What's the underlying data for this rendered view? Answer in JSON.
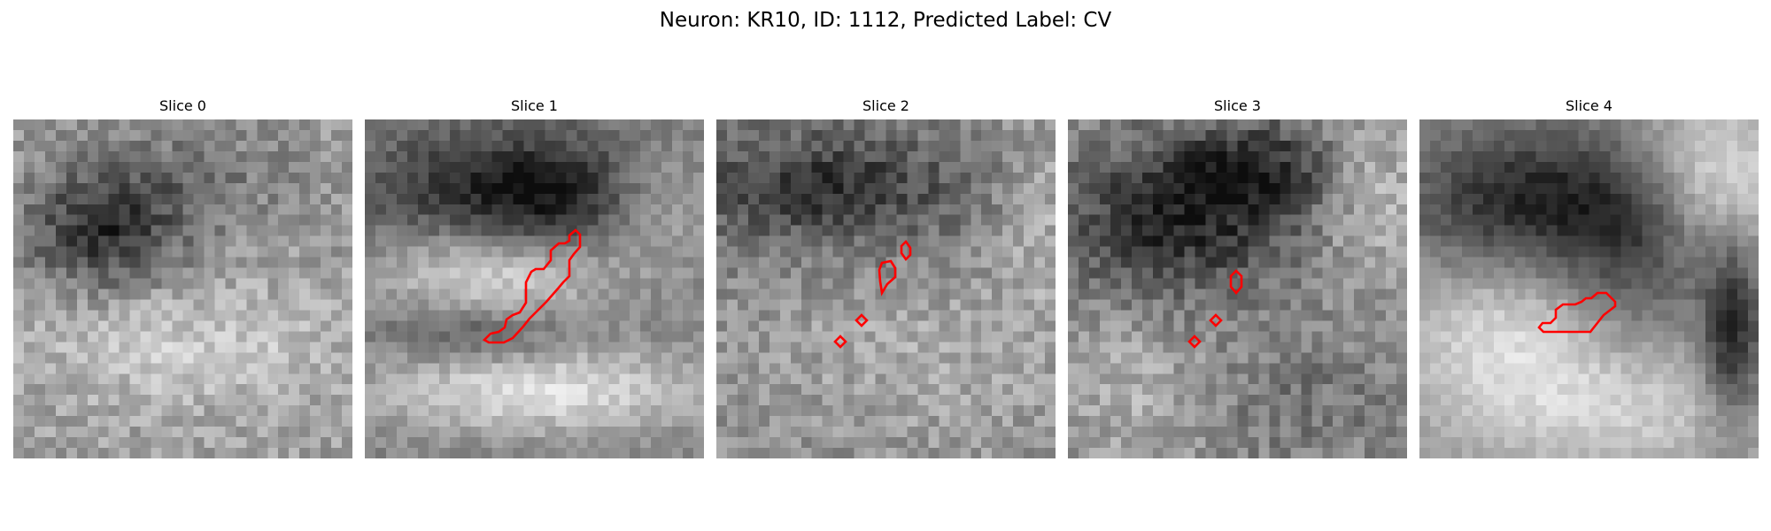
{
  "figure": {
    "title": "Neuron: KR10, ID: 1112, Predicted Label: CV"
  },
  "panels": [
    {
      "title": "Slice 0",
      "seed": 11,
      "style": "dark-top-blob"
    },
    {
      "title": "Slice 1",
      "seed": 23,
      "style": "bright-band"
    },
    {
      "title": "Slice 2",
      "seed": 37,
      "style": "noisy"
    },
    {
      "title": "Slice 3",
      "seed": 41,
      "style": "dark-top"
    },
    {
      "title": "Slice 4",
      "seed": 53,
      "style": "smooth"
    }
  ],
  "colors": {
    "contour": "#ff0000",
    "colormap": "grayscale"
  }
}
